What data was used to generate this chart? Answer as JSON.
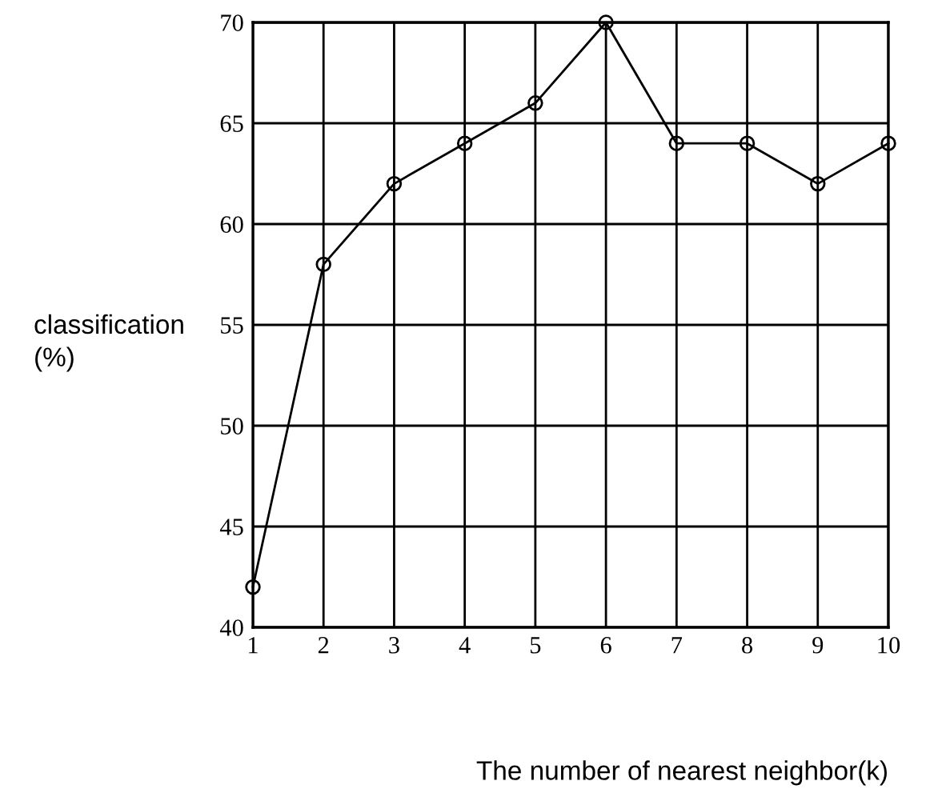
{
  "chart_data": {
    "type": "line",
    "xlabel": "The number of nearest neighbor(k)",
    "ylabel": "classification\n(%)",
    "x": [
      1,
      2,
      3,
      4,
      5,
      6,
      7,
      8,
      9,
      10
    ],
    "series": [
      {
        "color": "#000000",
        "values": [
          42,
          58,
          62,
          64,
          66,
          70,
          64,
          64,
          62,
          64
        ]
      }
    ],
    "xlim": [
      1,
      10
    ],
    "xticks": [
      1,
      2,
      3,
      4,
      5,
      6,
      7,
      8,
      9,
      10
    ],
    "ylim": [
      40,
      70
    ],
    "yticks": [
      40,
      45,
      50,
      55,
      60,
      65,
      70
    ],
    "grid": true,
    "marker": "circle",
    "line_style": "solid"
  }
}
